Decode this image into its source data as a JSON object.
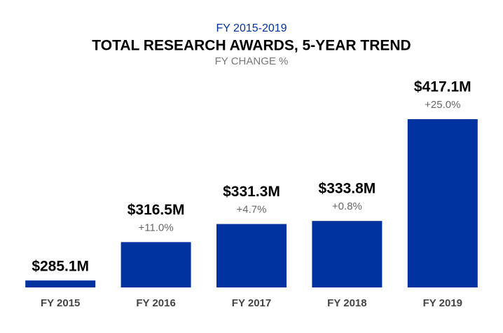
{
  "chart_data": {
    "type": "bar",
    "subtitle_top": "FY 2015-2019",
    "title": "TOTAL RESEARCH AWARDS, 5-YEAR TREND",
    "subtitle": "FY CHANGE %",
    "categories": [
      "FY 2015",
      "FY 2016",
      "FY 2017",
      "FY 2018",
      "FY 2019"
    ],
    "values": [
      285.1,
      316.5,
      331.3,
      333.8,
      417.1
    ],
    "value_labels": [
      "$285.1M",
      "$316.5M",
      "$331.3M",
      "$333.8M",
      "$417.1M"
    ],
    "changes": [
      null,
      "+11.0%",
      "+4.7%",
      "+0.8%",
      "+25.0%"
    ],
    "color": "#0033a0",
    "ylim": [
      279.4,
      417.1
    ]
  }
}
